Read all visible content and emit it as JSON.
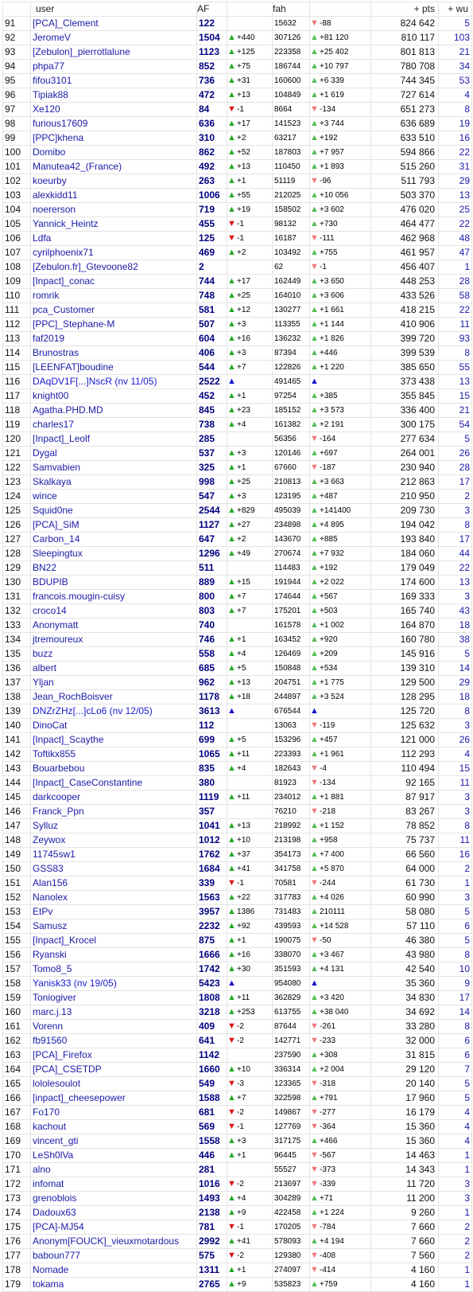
{
  "headers": {
    "user": "user",
    "af": "AF",
    "fah": "fah",
    "pts": "+ pts",
    "wu": "+ wu"
  },
  "colors": {
    "up": "#22aa22",
    "down": "#dd1111",
    "blue": "#1111cc",
    "user": "#1a1aa8",
    "af": "#000080"
  },
  "rows": [
    [
      "91",
      "[PCA]_Clement",
      "122",
      "",
      "",
      "15632",
      "down",
      "-88",
      "824 642",
      "5"
    ],
    [
      "92",
      "JeromeV",
      "1504",
      "up",
      "+440",
      "307126",
      "up",
      "+81 120",
      "810 117",
      "103"
    ],
    [
      "93",
      "[Zebulon]_pierrotlalune",
      "1123",
      "up",
      "+125",
      "223358",
      "up",
      "+25 402",
      "801 813",
      "21"
    ],
    [
      "94",
      "phpa77",
      "852",
      "up",
      "+75",
      "186744",
      "up",
      "+10 797",
      "780 708",
      "34"
    ],
    [
      "95",
      "fifou3101",
      "736",
      "up",
      "+31",
      "160600",
      "up",
      "+6 339",
      "744 345",
      "53"
    ],
    [
      "96",
      "Tipiak88",
      "472",
      "up",
      "+13",
      "104849",
      "up",
      "+1 619",
      "727 614",
      "4"
    ],
    [
      "97",
      "Xe120",
      "84",
      "down",
      "-1",
      "8664",
      "down",
      "-134",
      "651 273",
      "8"
    ],
    [
      "98",
      "furious17609",
      "636",
      "up",
      "+17",
      "141523",
      "up",
      "+3 744",
      "636 689",
      "19"
    ],
    [
      "99",
      "[PPC]khena",
      "310",
      "up",
      "+2",
      "63217",
      "up",
      "+192",
      "633 510",
      "16"
    ],
    [
      "100",
      "Domibo",
      "862",
      "up",
      "+52",
      "187803",
      "up",
      "+7 957",
      "594 866",
      "22"
    ],
    [
      "101",
      "Manutea42_(France)",
      "492",
      "up",
      "+13",
      "110450",
      "up",
      "+1 893",
      "515 260",
      "31"
    ],
    [
      "102",
      "koeurby",
      "263",
      "up",
      "+1",
      "51119",
      "down",
      "-96",
      "511 793",
      "29"
    ],
    [
      "103",
      "alexkidd11",
      "1006",
      "up",
      "+55",
      "212025",
      "up",
      "+10 056",
      "503 370",
      "13"
    ],
    [
      "104",
      "noererson",
      "719",
      "up",
      "+19",
      "158502",
      "up",
      "+3 602",
      "476 020",
      "25"
    ],
    [
      "105",
      "Yannick_Heintz",
      "455",
      "down",
      "-1",
      "98132",
      "up",
      "+730",
      "464 477",
      "22"
    ],
    [
      "106",
      "Ldfa",
      "125",
      "down",
      "-1",
      "16187",
      "down",
      "-111",
      "462 968",
      "48"
    ],
    [
      "107",
      "cyrilphoenix71",
      "469",
      "up",
      "+2",
      "103492",
      "up",
      "+755",
      "461 957",
      "47"
    ],
    [
      "108",
      "[Zebulon.fr]_Gtevoone82",
      "2",
      "",
      "",
      "62",
      "down",
      "-1",
      "456 407",
      "1"
    ],
    [
      "109",
      "[Inpact]_conac",
      "744",
      "up",
      "+17",
      "162449",
      "up",
      "+3 650",
      "448 253",
      "28"
    ],
    [
      "110",
      "romrik",
      "748",
      "up",
      "+25",
      "164010",
      "up",
      "+3 606",
      "433 526",
      "58"
    ],
    [
      "111",
      "pca_Customer",
      "581",
      "up",
      "+12",
      "130277",
      "up",
      "+1 661",
      "418 215",
      "22"
    ],
    [
      "112",
      "[PPC]_Stephane-M",
      "507",
      "up",
      "+3",
      "113355",
      "up",
      "+1 144",
      "410 906",
      "11"
    ],
    [
      "113",
      "faf2019",
      "604",
      "up",
      "+16",
      "136232",
      "up",
      "+1 826",
      "399 720",
      "93"
    ],
    [
      "114",
      "Brunostras",
      "406",
      "up",
      "+3",
      "87394",
      "up",
      "+446",
      "399 539",
      "8"
    ],
    [
      "115",
      "[LEENFAT]boudine",
      "544",
      "up",
      "+7",
      "122826",
      "up",
      "+1 220",
      "385 650",
      "55"
    ],
    [
      "116",
      "DAqDV1F[...]NscR  (nv 11/05)",
      "2522",
      "blue",
      "",
      "491465",
      "blue",
      "",
      "373 438",
      "13"
    ],
    [
      "117",
      "knight00",
      "452",
      "up",
      "+1",
      "97254",
      "up",
      "+385",
      "355 845",
      "15"
    ],
    [
      "118",
      "Agatha.PHD.MD",
      "845",
      "up",
      "+23",
      "185152",
      "up",
      "+3 573",
      "336 400",
      "21"
    ],
    [
      "119",
      "charles17",
      "738",
      "up",
      "+4",
      "161382",
      "up",
      "+2 191",
      "300 175",
      "54"
    ],
    [
      "120",
      "[Inpact]_Leolf",
      "285",
      "",
      "",
      "56356",
      "down",
      "-164",
      "277 634",
      "5"
    ],
    [
      "121",
      "Dygal",
      "537",
      "up",
      "+3",
      "120146",
      "up",
      "+697",
      "264 001",
      "26"
    ],
    [
      "122",
      "Samvabien",
      "325",
      "up",
      "+1",
      "67660",
      "down",
      "-187",
      "230 940",
      "28"
    ],
    [
      "123",
      "Skalkaya",
      "998",
      "up",
      "+25",
      "210813",
      "up",
      "+3 663",
      "212 863",
      "17"
    ],
    [
      "124",
      "wince",
      "547",
      "up",
      "+3",
      "123195",
      "up",
      "+487",
      "210 950",
      "2"
    ],
    [
      "125",
      "Squid0ne",
      "2544",
      "up",
      "+829",
      "495039",
      "up",
      "+141400",
      "209 730",
      "3"
    ],
    [
      "126",
      "[PCA]_SiM",
      "1127",
      "up",
      "+27",
      "234898",
      "up",
      "+4 895",
      "194 042",
      "8"
    ],
    [
      "127",
      "Carbon_14",
      "647",
      "up",
      "+2",
      "143670",
      "up",
      "+885",
      "193 840",
      "17"
    ],
    [
      "128",
      "Sleepingtux",
      "1296",
      "up",
      "+49",
      "270674",
      "up",
      "+7 932",
      "184 060",
      "44"
    ],
    [
      "129",
      "BN22",
      "511",
      "",
      "",
      "114483",
      "up",
      "+192",
      "179 049",
      "22"
    ],
    [
      "130",
      "BDUPIB",
      "889",
      "up",
      "+15",
      "191944",
      "up",
      "+2 022",
      "174 600",
      "13"
    ],
    [
      "131",
      "francois.mougin-cuisy",
      "800",
      "up",
      "+7",
      "174644",
      "up",
      "+567",
      "169 333",
      "3"
    ],
    [
      "132",
      "croco14",
      "803",
      "up",
      "+7",
      "175201",
      "up",
      "+503",
      "165 740",
      "43"
    ],
    [
      "133",
      "Anonymatt",
      "740",
      "",
      "",
      "161578",
      "up",
      "+1 002",
      "164 870",
      "18"
    ],
    [
      "134",
      "jtremoureux",
      "746",
      "up",
      "+1",
      "163452",
      "up",
      "+920",
      "160 780",
      "38"
    ],
    [
      "135",
      "buzz",
      "558",
      "up",
      "+4",
      "126469",
      "up",
      "+209",
      "145 916",
      "5"
    ],
    [
      "136",
      "albert",
      "685",
      "up",
      "+5",
      "150848",
      "up",
      "+534",
      "139 310",
      "14"
    ],
    [
      "137",
      "Yljan",
      "962",
      "up",
      "+13",
      "204751",
      "up",
      "+1 775",
      "129 500",
      "29"
    ],
    [
      "138",
      "Jean_RochBoisver",
      "1178",
      "up",
      "+18",
      "244897",
      "up",
      "+3 524",
      "128 295",
      "18"
    ],
    [
      "139",
      "DNZrZHz[...]cLo6  (nv 12/05)",
      "3613",
      "blue",
      "",
      "676544",
      "blue",
      "",
      "125 720",
      "8"
    ],
    [
      "140",
      "DinoCat",
      "112",
      "",
      "",
      "13063",
      "down",
      "-119",
      "125 632",
      "3"
    ],
    [
      "141",
      "[Inpact]_Scaythe",
      "699",
      "up",
      "+5",
      "153296",
      "up",
      "+457",
      "121 000",
      "26"
    ],
    [
      "142",
      "Toftikx855",
      "1065",
      "up",
      "+11",
      "223393",
      "up",
      "+1 961",
      "112 293",
      "4"
    ],
    [
      "143",
      "Bouarbebou",
      "835",
      "up",
      "+4",
      "182643",
      "down",
      "-4",
      "110 494",
      "15"
    ],
    [
      "144",
      "[Inpact]_CaseConstantine",
      "380",
      "",
      "",
      "81923",
      "down",
      "-134",
      "92 165",
      "11"
    ],
    [
      "145",
      "darkcooper",
      "1119",
      "up",
      "+11",
      "234012",
      "up",
      "+1 881",
      "87 917",
      "3"
    ],
    [
      "146",
      "Franck_Ppn",
      "357",
      "",
      "",
      "76210",
      "down",
      "-218",
      "83 267",
      "3"
    ],
    [
      "147",
      "Sylluz",
      "1041",
      "up",
      "+13",
      "218992",
      "up",
      "+1 152",
      "78 852",
      "8"
    ],
    [
      "148",
      "Zeywox",
      "1012",
      "up",
      "+10",
      "213198",
      "up",
      "+958",
      "75 737",
      "11"
    ],
    [
      "149",
      "11745sw1",
      "1762",
      "up",
      "+37",
      "354173",
      "up",
      "+7 400",
      "66 560",
      "16"
    ],
    [
      "150",
      "GSS83",
      "1684",
      "up",
      "+41",
      "341758",
      "up",
      "+5 870",
      "64 000",
      "2"
    ],
    [
      "151",
      "Alan156",
      "339",
      "down",
      "-1",
      "70581",
      "down",
      "-244",
      "61 730",
      "1"
    ],
    [
      "152",
      "Nanolex",
      "1563",
      "up",
      "+22",
      "317783",
      "up",
      "+4 026",
      "60 990",
      "3"
    ],
    [
      "153",
      "EtPv",
      "3957",
      "up",
      "1386",
      "731483",
      "up",
      "210111",
      "58 080",
      "5"
    ],
    [
      "154",
      "Samusz",
      "2232",
      "up",
      "+92",
      "439593",
      "up",
      "+14 528",
      "57 110",
      "6"
    ],
    [
      "155",
      "[Inpact]_Krocel",
      "875",
      "up",
      "+1",
      "190075",
      "down",
      "-50",
      "46 380",
      "5"
    ],
    [
      "156",
      "Ryanski",
      "1666",
      "up",
      "+16",
      "338070",
      "up",
      "+3 467",
      "43 980",
      "8"
    ],
    [
      "157",
      "Tomo8_5",
      "1742",
      "up",
      "+30",
      "351593",
      "up",
      "+4 131",
      "42 540",
      "10"
    ],
    [
      "158",
      "Yanisk33  (nv 19/05)",
      "5423",
      "blue",
      "",
      "954080",
      "blue",
      "",
      "35 360",
      "9"
    ],
    [
      "159",
      "Toniogiver",
      "1808",
      "up",
      "+11",
      "362829",
      "up",
      "+3 420",
      "34 830",
      "17"
    ],
    [
      "160",
      "marc.j.13",
      "3218",
      "up",
      "+253",
      "613755",
      "up",
      "+38 040",
      "34 692",
      "14"
    ],
    [
      "161",
      "Vorenn",
      "409",
      "down",
      "-2",
      "87644",
      "down",
      "-261",
      "33 280",
      "8"
    ],
    [
      "162",
      "fb91560",
      "641",
      "down",
      "-2",
      "142771",
      "down",
      "-233",
      "32 000",
      "6"
    ],
    [
      "163",
      "[PCA]_Firefox",
      "1142",
      "",
      "",
      "237590",
      "up",
      "+308",
      "31 815",
      "6"
    ],
    [
      "164",
      "[PCA]_CSETDP",
      "1660",
      "up",
      "+10",
      "336314",
      "up",
      "+2 004",
      "29 120",
      "7"
    ],
    [
      "165",
      "lololesoulot",
      "549",
      "down",
      "-3",
      "123365",
      "down",
      "-318",
      "20 140",
      "5"
    ],
    [
      "166",
      "[inpact]_cheesepower",
      "1588",
      "up",
      "+7",
      "322598",
      "up",
      "+791",
      "17 960",
      "5"
    ],
    [
      "167",
      "Fo170",
      "681",
      "down",
      "-2",
      "149867",
      "down",
      "-277",
      "16 179",
      "4"
    ],
    [
      "168",
      "kachout",
      "569",
      "down",
      "-1",
      "127769",
      "down",
      "-364",
      "15 360",
      "4"
    ],
    [
      "169",
      "vincent_gti",
      "1558",
      "up",
      "+3",
      "317175",
      "up",
      "+466",
      "15 360",
      "4"
    ],
    [
      "170",
      "LeSh0lVa",
      "446",
      "up",
      "+1",
      "96445",
      "down",
      "-567",
      "14 463",
      "1"
    ],
    [
      "171",
      "alno",
      "281",
      "",
      "",
      "55527",
      "down",
      "-373",
      "14 343",
      "1"
    ],
    [
      "172",
      "infomat",
      "1016",
      "down",
      "-2",
      "213697",
      "down",
      "-339",
      "11 720",
      "3"
    ],
    [
      "173",
      "grenoblois",
      "1493",
      "up",
      "+4",
      "304289",
      "up",
      "+71",
      "11 200",
      "3"
    ],
    [
      "174",
      "Dadoux63",
      "2138",
      "up",
      "+9",
      "422458",
      "up",
      "+1 224",
      "9 260",
      "1"
    ],
    [
      "175",
      "[PCA]-MJ54",
      "781",
      "down",
      "-1",
      "170205",
      "down",
      "-784",
      "7 660",
      "2"
    ],
    [
      "176",
      "Anonym[FOUCK]_vieuxmotardous",
      "2992",
      "up",
      "+41",
      "578093",
      "up",
      "+4 194",
      "7 660",
      "2"
    ],
    [
      "177",
      "baboun777",
      "575",
      "down",
      "-2",
      "129380",
      "down",
      "-408",
      "7 560",
      "2"
    ],
    [
      "178",
      "Nomade",
      "1311",
      "up",
      "+1",
      "274097",
      "down",
      "-414",
      "4 160",
      "1"
    ],
    [
      "179",
      "tokama",
      "2765",
      "up",
      "+9",
      "535823",
      "up",
      "+759",
      "4 160",
      "1"
    ]
  ]
}
